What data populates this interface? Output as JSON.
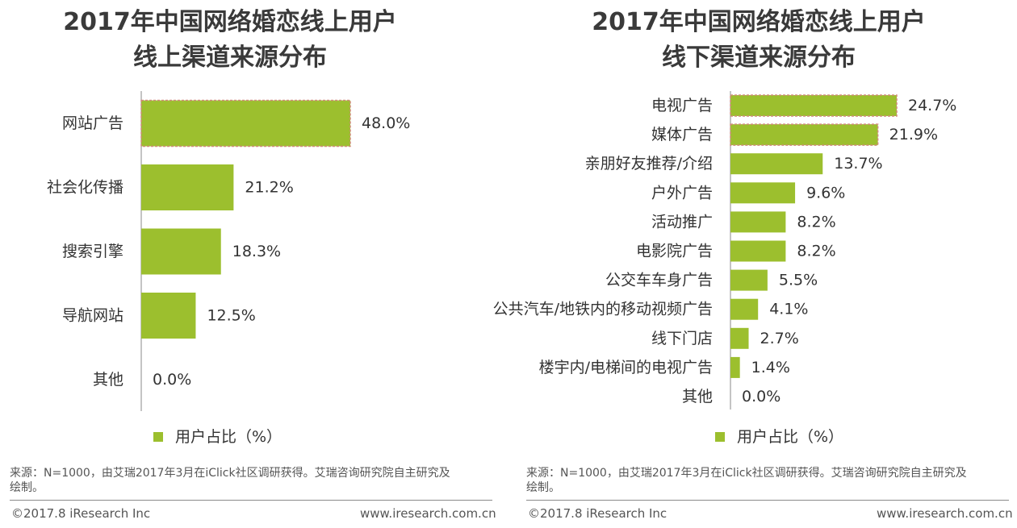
{
  "chart_data": [
    {
      "type": "bar",
      "orientation": "horizontal",
      "title": "2017年中国网络婚恋线上用户 线上渠道来源分布",
      "title_lines": [
        "2017年中国网络婚恋线上用户",
        "线上渠道来源分布"
      ],
      "categories": [
        "网站广告",
        "社会化传播",
        "搜索引擎",
        "导航网站",
        "其他"
      ],
      "values": [
        48.0,
        21.2,
        18.3,
        12.5,
        0.0
      ],
      "value_labels": [
        "48.0%",
        "21.2%",
        "18.3%",
        "12.5%",
        "0.0%"
      ],
      "highlight_index": 0,
      "legend": "用户占比（%）",
      "xlim": [
        0,
        60
      ]
    },
    {
      "type": "bar",
      "orientation": "horizontal",
      "title": "2017年中国网络婚恋线上用户 线下渠道来源分布",
      "title_lines": [
        "2017年中国网络婚恋线上用户",
        "线下渠道来源分布"
      ],
      "categories": [
        "电视广告",
        "媒体广告",
        "亲朋好友推荐/介绍",
        "户外广告",
        "活动推广",
        "电影院广告",
        "公交车车身广告",
        "公共汽车/地铁内的移动视频广告",
        "线下门店",
        "楼宇内/电梯间的电视广告",
        "其他"
      ],
      "values": [
        24.7,
        21.9,
        13.7,
        9.6,
        8.2,
        8.2,
        5.5,
        4.1,
        2.7,
        1.4,
        0.0
      ],
      "value_labels": [
        "24.7%",
        "21.9%",
        "13.7%",
        "9.6%",
        "8.2%",
        "8.2%",
        "5.5%",
        "4.1%",
        "2.7%",
        "1.4%",
        "0.0%"
      ],
      "highlight_index": [
        0,
        1
      ],
      "legend": "用户占比（%）",
      "xlim": [
        0,
        42
      ]
    }
  ],
  "left": {
    "legend": "用户占比（%）",
    "source": [
      "来源：N=1000，由艾瑞2017年3月在iClick社区调研获得。艾瑞咨询研究院自主研究及",
      "绘制。"
    ],
    "copyright": "©2017.8 iResearch Inc",
    "website": "www.iresearch.com.cn"
  },
  "right": {
    "legend": "用户占比（%）",
    "source": [
      "来源：N=1000，由艾瑞2017年3月在iClick社区调研获得。艾瑞咨询研究院自主研究及",
      "绘制。"
    ],
    "copyright": "©2017.8 iResearch Inc",
    "website": "www.iresearch.com.cn"
  },
  "colors": {
    "bar": "#9cbf2e",
    "highlight_border": "#d08a7a",
    "axis": "#8a8a8a"
  }
}
